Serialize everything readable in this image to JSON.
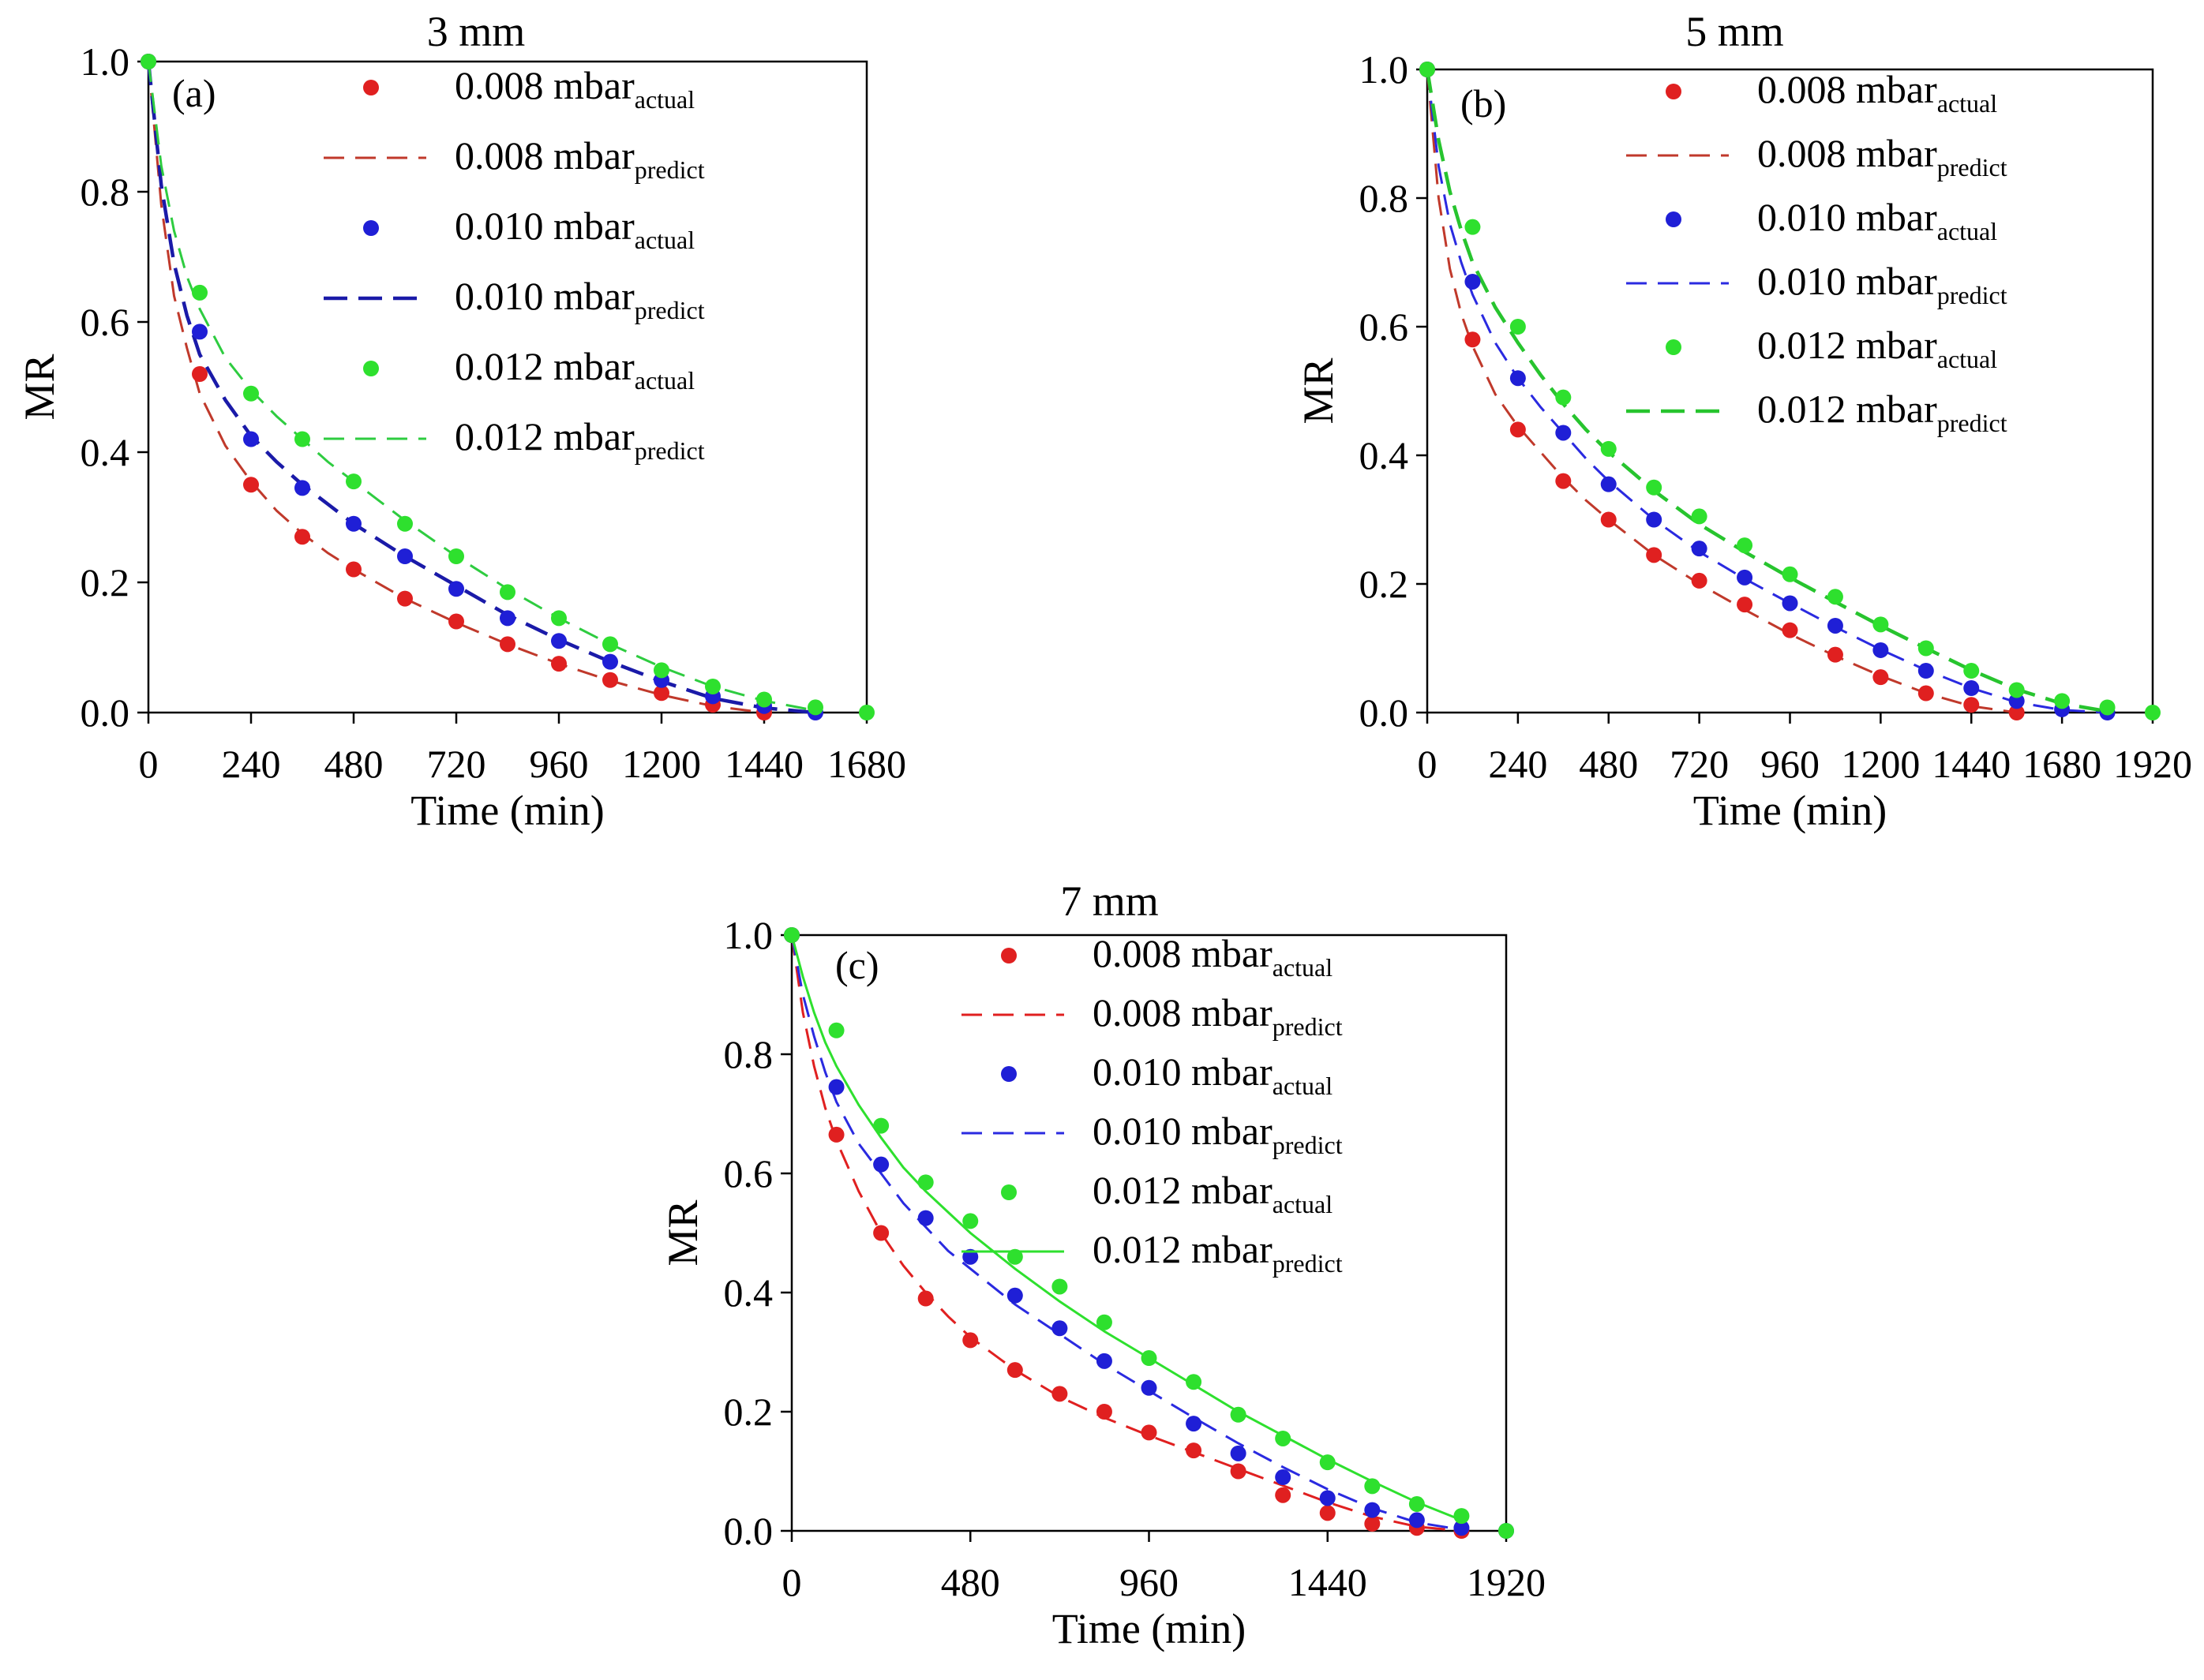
{
  "figure": {
    "description_title": "Moisture ratio drying curves"
  },
  "chart_data": [
    {
      "type": "scatter",
      "panel_label": "(a)",
      "title": "3 mm",
      "xlabel": "Time (min)",
      "ylabel": "MR",
      "xlim": [
        0,
        1680
      ],
      "ylim": [
        0.0,
        1.0
      ],
      "xticks": [
        "0",
        "240",
        "480",
        "720",
        "960",
        "1200",
        "1440",
        "1680"
      ],
      "yticks": [
        "0.0",
        "0.2",
        "0.4",
        "0.6",
        "0.8",
        "1.0"
      ],
      "legend_position": "top-right",
      "series": [
        {
          "name": "0.008 mbar",
          "sub": "actual",
          "kind": "points",
          "color": "#e02020",
          "x": [
            0,
            120,
            240,
            360,
            480,
            600,
            720,
            840,
            960,
            1080,
            1200,
            1320,
            1440
          ],
          "y": [
            1.0,
            0.52,
            0.35,
            0.27,
            0.22,
            0.175,
            0.14,
            0.105,
            0.075,
            0.05,
            0.03,
            0.012,
            0.0
          ]
        },
        {
          "name": "0.008 mbar",
          "sub": "predict",
          "kind": "line",
          "dash": "dash-long",
          "color": "#c0392b",
          "x": [
            0,
            30,
            60,
            90,
            120,
            180,
            240,
            300,
            360,
            420,
            480,
            600,
            720,
            840,
            960,
            1080,
            1200,
            1320,
            1440
          ],
          "y": [
            1.0,
            0.78,
            0.64,
            0.56,
            0.49,
            0.41,
            0.355,
            0.31,
            0.275,
            0.245,
            0.22,
            0.175,
            0.138,
            0.105,
            0.075,
            0.049,
            0.027,
            0.01,
            0.0
          ]
        },
        {
          "name": "0.010 mbar",
          "sub": "actual",
          "kind": "points",
          "color": "#1f1fd6",
          "x": [
            0,
            120,
            240,
            360,
            480,
            600,
            720,
            840,
            960,
            1080,
            1200,
            1320,
            1440,
            1560
          ],
          "y": [
            1.0,
            0.585,
            0.42,
            0.345,
            0.29,
            0.24,
            0.19,
            0.145,
            0.11,
            0.078,
            0.05,
            0.025,
            0.01,
            0.0
          ]
        },
        {
          "name": "0.010 mbar",
          "sub": "predict",
          "kind": "line",
          "dash": "dash-bold",
          "color": "#1a1aa8",
          "x": [
            0,
            30,
            60,
            90,
            120,
            180,
            240,
            300,
            360,
            420,
            480,
            600,
            720,
            840,
            960,
            1080,
            1200,
            1320,
            1440,
            1560
          ],
          "y": [
            1.0,
            0.81,
            0.69,
            0.61,
            0.55,
            0.48,
            0.425,
            0.385,
            0.35,
            0.32,
            0.29,
            0.24,
            0.195,
            0.15,
            0.112,
            0.078,
            0.048,
            0.022,
            0.007,
            0.0
          ]
        },
        {
          "name": "0.012 mbar",
          "sub": "actual",
          "kind": "points",
          "color": "#2ee02e",
          "x": [
            0,
            120,
            240,
            360,
            480,
            600,
            720,
            840,
            960,
            1080,
            1200,
            1320,
            1440,
            1560,
            1680
          ],
          "y": [
            1.0,
            0.645,
            0.49,
            0.42,
            0.355,
            0.29,
            0.24,
            0.185,
            0.145,
            0.105,
            0.065,
            0.04,
            0.02,
            0.008,
            0.0
          ]
        },
        {
          "name": "0.012 mbar",
          "sub": "predict",
          "kind": "line",
          "dash": "dash-long",
          "color": "#2ecc40",
          "x": [
            0,
            30,
            60,
            90,
            120,
            180,
            240,
            300,
            360,
            420,
            480,
            600,
            720,
            840,
            960,
            1080,
            1200,
            1320,
            1440,
            1560
          ],
          "y": [
            1.0,
            0.84,
            0.74,
            0.67,
            0.62,
            0.545,
            0.495,
            0.455,
            0.42,
            0.385,
            0.355,
            0.295,
            0.24,
            0.19,
            0.145,
            0.105,
            0.07,
            0.04,
            0.018,
            0.003
          ]
        }
      ]
    },
    {
      "type": "scatter",
      "panel_label": "(b)",
      "title": "5 mm",
      "xlabel": "Time (min)",
      "ylabel": "MR",
      "xlim": [
        0,
        1920
      ],
      "ylim": [
        0.0,
        1.0
      ],
      "xticks": [
        "0",
        "240",
        "480",
        "720",
        "960",
        "1200",
        "1440",
        "1680",
        "1920"
      ],
      "yticks": [
        "0.0",
        "0.2",
        "0.4",
        "0.6",
        "0.8",
        "1.0"
      ],
      "legend_position": "top-right",
      "series": [
        {
          "name": "0.008 mbar",
          "sub": "actual",
          "kind": "points",
          "color": "#e02020",
          "x": [
            0,
            120,
            240,
            360,
            480,
            600,
            720,
            840,
            960,
            1080,
            1200,
            1320,
            1440,
            1560
          ],
          "y": [
            1.0,
            0.58,
            0.44,
            0.36,
            0.3,
            0.245,
            0.205,
            0.168,
            0.128,
            0.09,
            0.055,
            0.03,
            0.012,
            0.0
          ]
        },
        {
          "name": "0.008 mbar",
          "sub": "predict",
          "kind": "line",
          "dash": "dash-long",
          "color": "#c0392b",
          "x": [
            0,
            30,
            60,
            90,
            120,
            180,
            240,
            300,
            360,
            420,
            480,
            600,
            720,
            840,
            960,
            1080,
            1200,
            1320,
            1440,
            1560
          ],
          "y": [
            1.0,
            0.8,
            0.69,
            0.62,
            0.57,
            0.495,
            0.445,
            0.405,
            0.365,
            0.33,
            0.3,
            0.245,
            0.2,
            0.16,
            0.122,
            0.088,
            0.057,
            0.03,
            0.01,
            0.0
          ]
        },
        {
          "name": "0.010 mbar",
          "sub": "actual",
          "kind": "points",
          "color": "#1f1fd6",
          "x": [
            0,
            120,
            240,
            360,
            480,
            600,
            720,
            840,
            960,
            1080,
            1200,
            1320,
            1440,
            1560,
            1680,
            1800
          ],
          "y": [
            1.0,
            0.67,
            0.52,
            0.435,
            0.355,
            0.3,
            0.255,
            0.21,
            0.17,
            0.135,
            0.097,
            0.065,
            0.038,
            0.018,
            0.005,
            0.0
          ]
        },
        {
          "name": "0.010 mbar",
          "sub": "predict",
          "kind": "line",
          "dash": "dash-long",
          "color": "#2a2ae0",
          "x": [
            0,
            30,
            60,
            90,
            120,
            180,
            240,
            300,
            360,
            420,
            480,
            600,
            720,
            840,
            960,
            1080,
            1200,
            1320,
            1440,
            1560,
            1680,
            1800
          ],
          "y": [
            1.0,
            0.85,
            0.76,
            0.7,
            0.65,
            0.575,
            0.52,
            0.475,
            0.435,
            0.395,
            0.36,
            0.3,
            0.25,
            0.208,
            0.17,
            0.133,
            0.098,
            0.066,
            0.038,
            0.016,
            0.004,
            0.0
          ]
        },
        {
          "name": "0.012 mbar",
          "sub": "actual",
          "kind": "points",
          "color": "#2ee02e",
          "x": [
            0,
            120,
            240,
            360,
            480,
            600,
            720,
            840,
            960,
            1080,
            1200,
            1320,
            1440,
            1560,
            1680,
            1800,
            1920
          ],
          "y": [
            1.0,
            0.755,
            0.6,
            0.49,
            0.41,
            0.35,
            0.305,
            0.26,
            0.215,
            0.18,
            0.137,
            0.1,
            0.065,
            0.035,
            0.018,
            0.008,
            0.0
          ]
        },
        {
          "name": "0.012 mbar",
          "sub": "predict",
          "kind": "line",
          "dash": "dash-bold",
          "color": "#27c42e",
          "x": [
            0,
            30,
            60,
            90,
            120,
            180,
            240,
            300,
            360,
            420,
            480,
            600,
            720,
            840,
            960,
            1080,
            1200,
            1320,
            1440,
            1560,
            1680,
            1800
          ],
          "y": [
            1.0,
            0.89,
            0.81,
            0.75,
            0.7,
            0.63,
            0.575,
            0.525,
            0.48,
            0.44,
            0.405,
            0.345,
            0.293,
            0.25,
            0.21,
            0.172,
            0.135,
            0.1,
            0.066,
            0.036,
            0.014,
            0.002
          ]
        }
      ]
    },
    {
      "type": "scatter",
      "panel_label": "(c)",
      "title": "7 mm",
      "xlabel": "Time (min)",
      "ylabel": "MR",
      "xlim": [
        0,
        1920
      ],
      "ylim": [
        0.0,
        1.0
      ],
      "xticks": [
        "0",
        "480",
        "960",
        "1440",
        "1920"
      ],
      "yticks": [
        "0.0",
        "0.2",
        "0.4",
        "0.6",
        "0.8",
        "1.0"
      ],
      "legend_position": "top-right",
      "series": [
        {
          "name": "0.008 mbar",
          "sub": "actual",
          "kind": "points",
          "color": "#e02020",
          "x": [
            0,
            120,
            240,
            360,
            480,
            600,
            720,
            840,
            960,
            1080,
            1200,
            1320,
            1440,
            1560,
            1680,
            1800
          ],
          "y": [
            1.0,
            0.665,
            0.5,
            0.39,
            0.32,
            0.27,
            0.23,
            0.2,
            0.165,
            0.135,
            0.1,
            0.06,
            0.03,
            0.012,
            0.005,
            0.0
          ]
        },
        {
          "name": "0.008 mbar",
          "sub": "predict",
          "kind": "line",
          "dash": "dash-long",
          "color": "#e02020",
          "x": [
            0,
            30,
            60,
            90,
            120,
            180,
            240,
            300,
            360,
            420,
            480,
            600,
            720,
            840,
            960,
            1080,
            1200,
            1320,
            1440,
            1560,
            1680,
            1800
          ],
          "y": [
            1.0,
            0.87,
            0.78,
            0.71,
            0.655,
            0.57,
            0.5,
            0.445,
            0.4,
            0.36,
            0.325,
            0.27,
            0.225,
            0.19,
            0.16,
            0.132,
            0.104,
            0.076,
            0.048,
            0.024,
            0.007,
            0.0
          ]
        },
        {
          "name": "0.010 mbar",
          "sub": "actual",
          "kind": "points",
          "color": "#1f1fd6",
          "x": [
            0,
            120,
            240,
            360,
            480,
            600,
            720,
            840,
            960,
            1080,
            1200,
            1320,
            1440,
            1560,
            1680,
            1800,
            1920
          ],
          "y": [
            1.0,
            0.745,
            0.615,
            0.525,
            0.46,
            0.395,
            0.34,
            0.285,
            0.24,
            0.18,
            0.13,
            0.09,
            0.055,
            0.035,
            0.018,
            0.005,
            0.0
          ]
        },
        {
          "name": "0.010 mbar",
          "sub": "predict",
          "kind": "line",
          "dash": "dash-long",
          "color": "#2a2ae0",
          "x": [
            0,
            30,
            60,
            90,
            120,
            180,
            240,
            300,
            360,
            420,
            480,
            600,
            720,
            840,
            960,
            1080,
            1200,
            1320,
            1440,
            1560,
            1680,
            1800
          ],
          "y": [
            1.0,
            0.9,
            0.83,
            0.77,
            0.72,
            0.65,
            0.6,
            0.55,
            0.51,
            0.47,
            0.44,
            0.38,
            0.33,
            0.28,
            0.235,
            0.19,
            0.147,
            0.107,
            0.07,
            0.038,
            0.014,
            0.002
          ]
        },
        {
          "name": "0.012 mbar",
          "sub": "actual",
          "kind": "points",
          "color": "#2ee02e",
          "x": [
            0,
            120,
            240,
            360,
            480,
            600,
            720,
            840,
            960,
            1080,
            1200,
            1320,
            1440,
            1560,
            1680,
            1800,
            1920
          ],
          "y": [
            1.0,
            0.84,
            0.68,
            0.585,
            0.52,
            0.46,
            0.41,
            0.35,
            0.29,
            0.25,
            0.195,
            0.155,
            0.115,
            0.075,
            0.045,
            0.025,
            0.0
          ]
        },
        {
          "name": "0.012 mbar",
          "sub": "predict",
          "kind": "line",
          "dash": "solid",
          "color": "#2ee02e",
          "x": [
            0,
            30,
            60,
            90,
            120,
            180,
            240,
            300,
            360,
            420,
            480,
            600,
            720,
            840,
            960,
            1080,
            1200,
            1320,
            1440,
            1560,
            1680,
            1800
          ],
          "y": [
            1.0,
            0.93,
            0.87,
            0.82,
            0.78,
            0.715,
            0.66,
            0.61,
            0.57,
            0.535,
            0.5,
            0.44,
            0.385,
            0.335,
            0.29,
            0.245,
            0.2,
            0.16,
            0.12,
            0.083,
            0.048,
            0.018
          ]
        }
      ]
    }
  ]
}
